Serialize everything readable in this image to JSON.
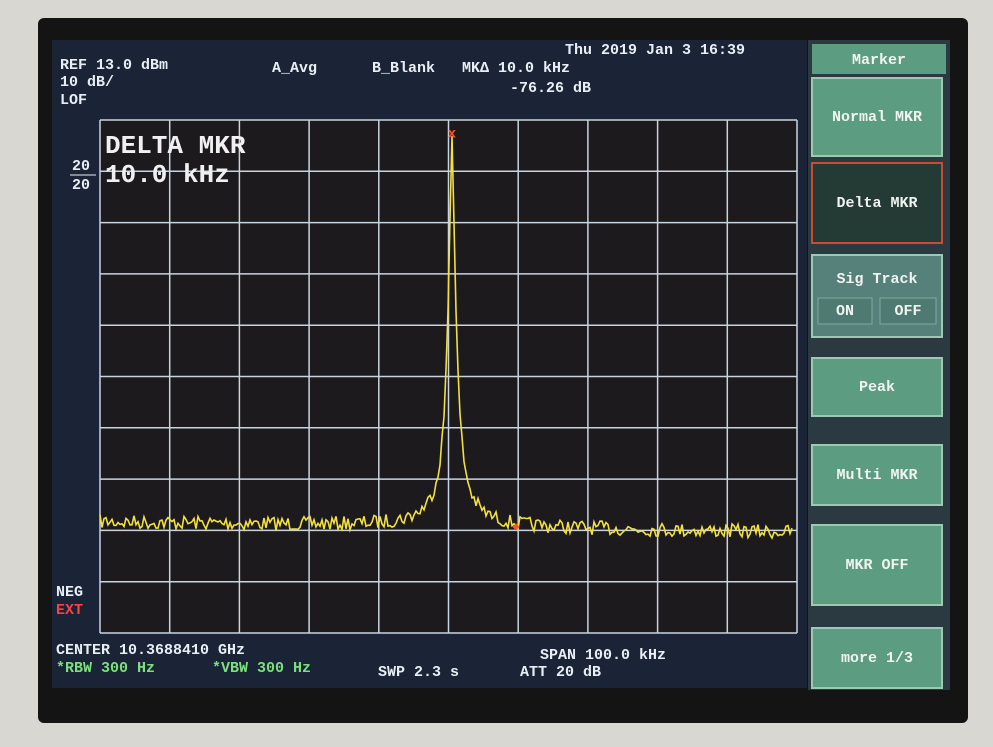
{
  "header": {
    "date": "Thu 2019 Jan  3 16:39",
    "ref": "REF 13.0 dBm",
    "scale": "10 dB/",
    "lof": "LOF",
    "trace_a": "A_Avg",
    "trace_b": "B_Blank",
    "marker": "MKΔ 10.0 kHz",
    "marker_level": "-76.26 dB"
  },
  "overlay": {
    "mode": "DELTA MKR",
    "delta": "10.0 kHz"
  },
  "side": {
    "top": "20",
    "bottom": "20",
    "neg": "NEG",
    "ext": "EXT"
  },
  "footer": {
    "center": "CENTER 10.3688410 GHz",
    "span": "SPAN 100.0 kHz",
    "rbw": "*RBW 300 Hz",
    "vbw": "*VBW 300 Hz",
    "sweep": "SWP 2.3 s",
    "att": "ATT 20 dB"
  },
  "menu": {
    "title": "Marker",
    "buttons": [
      "Normal MKR",
      "Delta MKR",
      "Sig Track",
      "Peak",
      "Multi MKR",
      "MKR OFF",
      "more 1/3"
    ],
    "sig_on": "ON",
    "sig_off": "OFF"
  }
}
